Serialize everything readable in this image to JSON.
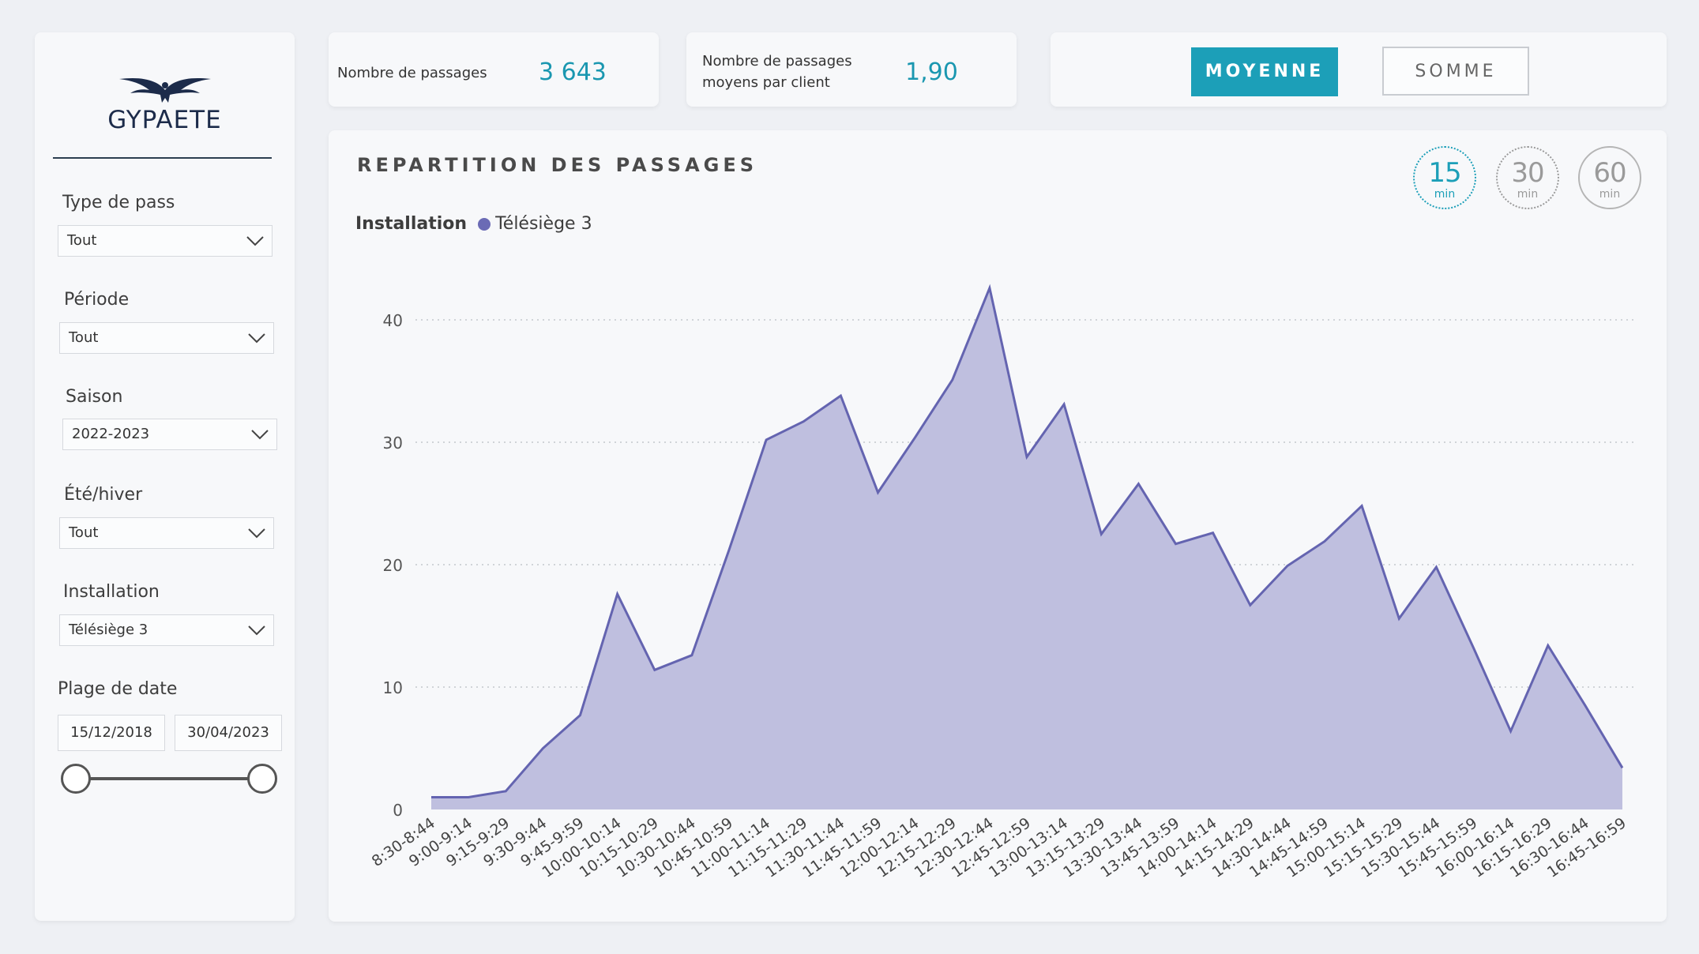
{
  "brand": {
    "logo_text": "GYPAETE"
  },
  "filters": {
    "type_pass": {
      "label": "Type de pass",
      "value": "Tout"
    },
    "periode": {
      "label": "Période",
      "value": "Tout"
    },
    "saison": {
      "label": "Saison",
      "value": "2022-2023"
    },
    "ete_hiver": {
      "label": "Été/hiver",
      "value": "Tout"
    },
    "installation": {
      "label": "Installation",
      "value": "Télésiège 3"
    },
    "plage_date": {
      "label": "Plage de date",
      "start": "15/12/2018",
      "end": "30/04/2023"
    }
  },
  "kpis": {
    "passages": {
      "label": "Nombre de passages",
      "value": "3 643"
    },
    "moyens": {
      "label_line1": "Nombre de passages",
      "label_line2": "moyens par client",
      "value": "1,90"
    }
  },
  "toggle": {
    "moyenne": "MOYENNE",
    "somme": "SOMME",
    "active": "moyenne"
  },
  "intervals": [
    {
      "num": "15",
      "unit": "min",
      "active": true
    },
    {
      "num": "30",
      "unit": "min",
      "active": false
    },
    {
      "num": "60",
      "unit": "min",
      "active": false
    }
  ],
  "colors": {
    "accent": "#1c9fb8",
    "series_line": "#6464b0",
    "series_fill": "#bfbfdf"
  },
  "chart_data": {
    "type": "area",
    "title": "REPARTITION DES PASSAGES",
    "legend_title": "Installation",
    "legend_position": "top-left",
    "grid": true,
    "ylim": [
      0,
      43
    ],
    "yticks": [
      0,
      10,
      20,
      30,
      40
    ],
    "categories": [
      "8:30-8:44",
      "9:00-9:14",
      "9:15-9:29",
      "9:30-9:44",
      "9:45-9:59",
      "10:00-10:14",
      "10:15-10:29",
      "10:30-10:44",
      "10:45-10:59",
      "11:00-11:14",
      "11:15-11:29",
      "11:30-11:44",
      "11:45-11:59",
      "12:00-12:14",
      "12:15-12:29",
      "12:30-12:44",
      "12:45-12:59",
      "13:00-13:14",
      "13:15-13:29",
      "13:30-13:44",
      "13:45-13:59",
      "14:00-14:14",
      "14:15-14:29",
      "14:30-14:44",
      "14:45-14:59",
      "15:00-15:14",
      "15:15-15:29",
      "15:30-15:44",
      "15:45-15:59",
      "16:00-16:14",
      "16:15-16:29",
      "16:30-16:44",
      "16:45-16:59"
    ],
    "series": [
      {
        "name": "Télésiège 3",
        "values": [
          1,
          1,
          1.5,
          5,
          7.7,
          17.6,
          11.4,
          12.6,
          21.2,
          30.2,
          31.7,
          33.8,
          25.9,
          30.4,
          35.1,
          42.6,
          28.8,
          33.1,
          22.5,
          26.6,
          21.7,
          22.6,
          16.7,
          19.9,
          21.9,
          24.8,
          15.6,
          19.8,
          13.2,
          6.4,
          13.4,
          8.5,
          3.4
        ]
      }
    ]
  }
}
